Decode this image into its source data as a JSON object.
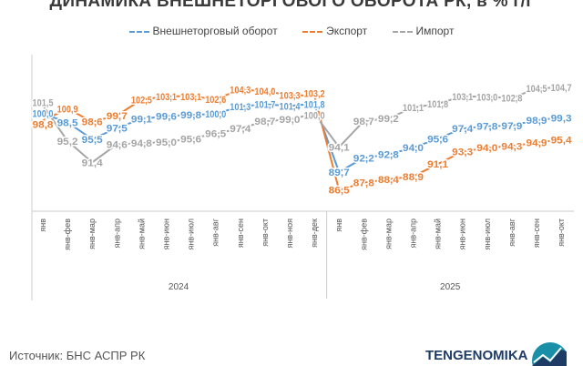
{
  "chart_data": {
    "type": "line",
    "title": "ДИНАМИКА ВНЕШНЕТОРГОВОГО ОБОРОТА РК, в % г/г",
    "categories": [
      "янв",
      "янв-фев",
      "янв-мар",
      "янв-апр",
      "янв-май",
      "янв-июн",
      "янв-июл",
      "янв-авг",
      "янв-сен",
      "янв-окт",
      "янв-ноя",
      "янв-дек",
      "янв",
      "янв-фев",
      "янв-мар",
      "янв-апр",
      "янв-май",
      "янв-июн",
      "янв-июл",
      "янв-авг",
      "янв-сен",
      "янв-окт"
    ],
    "groups": [
      {
        "label": "2024",
        "count": 12
      },
      {
        "label": "2025",
        "count": 10
      }
    ],
    "series": [
      {
        "name": "Внешнеторговый оборот",
        "color": "#5b9bd5",
        "values": [
          100.0,
          98.5,
          95.5,
          97.5,
          99.1,
          99.6,
          99.8,
          100.0,
          101.3,
          101.7,
          101.4,
          101.8,
          89.7,
          92.2,
          92.8,
          94.0,
          95.6,
          97.4,
          97.8,
          97.9,
          98.9,
          99.3
        ]
      },
      {
        "name": "Экспорт",
        "color": "#ed7d31",
        "values": [
          98.8,
          100.9,
          98.6,
          99.7,
          102.5,
          103.1,
          103.1,
          102.6,
          104.3,
          104.0,
          103.3,
          103.2,
          86.5,
          87.8,
          88.4,
          88.9,
          91.1,
          93.3,
          94.0,
          94.3,
          94.9,
          95.4
        ]
      },
      {
        "name": "Импорт",
        "color": "#a5a5a5",
        "values": [
          101.5,
          95.2,
          91.4,
          94.6,
          94.8,
          95.0,
          95.6,
          96.5,
          97.4,
          98.7,
          99.0,
          100.0,
          94.1,
          98.7,
          99.2,
          101.1,
          101.8,
          103.1,
          103.0,
          102.8,
          104.5,
          104.7
        ]
      }
    ],
    "legend": "top",
    "grid": false
  },
  "footer": {
    "source": "Источник: БНС АСПР РК",
    "brand": "TENGENOMIKA"
  }
}
